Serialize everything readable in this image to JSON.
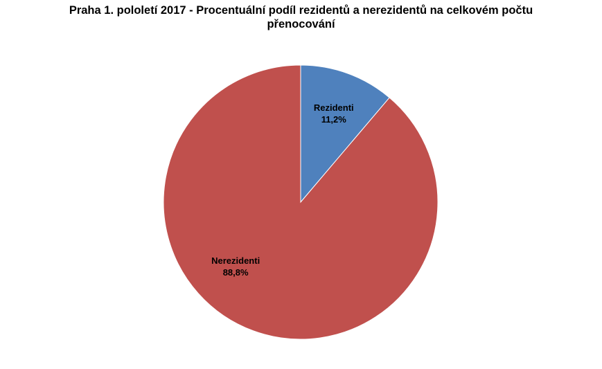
{
  "chart_data": {
    "type": "pie",
    "title_line1": "Praha 1. pololetí 2017 - Procentuální podíl rezidentů a nerezidentů na celkovém počtu",
    "title_line2": "přenocování",
    "slices": [
      {
        "name": "Rezidenti",
        "value": 11.2,
        "label": "11,2%",
        "color": "#4F81BD"
      },
      {
        "name": "Nerezidenti",
        "value": 88.8,
        "label": "88,8%",
        "color": "#C0504D"
      }
    ],
    "legend": "none",
    "start_angle": "12 o'clock, clockwise"
  }
}
